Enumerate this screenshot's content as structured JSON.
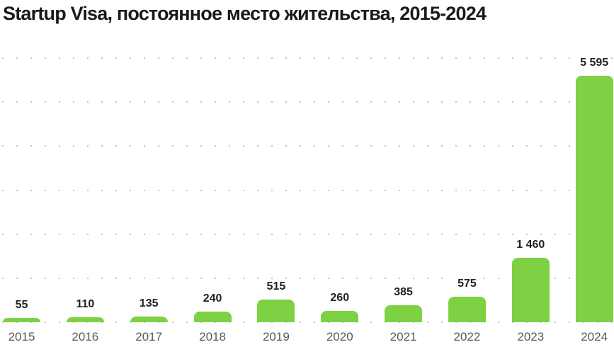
{
  "title": "Startup Visa, постоянное место жительства, 2015-2024",
  "chart_data": {
    "type": "bar",
    "title": "Startup Visa, постоянное место жительства, 2015-2024",
    "categories": [
      "2015",
      "2016",
      "2017",
      "2018",
      "2019",
      "2020",
      "2021",
      "2022",
      "2023",
      "2024"
    ],
    "values": [
      55,
      110,
      135,
      240,
      515,
      260,
      385,
      575,
      1460,
      5595
    ],
    "value_labels": [
      "55",
      "110",
      "135",
      "240",
      "515",
      "260",
      "385",
      "575",
      "1 460",
      "5 595"
    ],
    "xlabel": "",
    "ylabel": "",
    "ylim": [
      0,
      6000
    ],
    "grid": {
      "visible": true,
      "style": "dotted-rows",
      "interval": 1000
    },
    "legend_position": "none",
    "colors": {
      "bar": "#7ed142",
      "title": "#1a1a1a",
      "value_label": "#222222",
      "axis_label": "#58585a",
      "grid_dot": "#c3c3c3",
      "background": "#ffffff"
    }
  }
}
